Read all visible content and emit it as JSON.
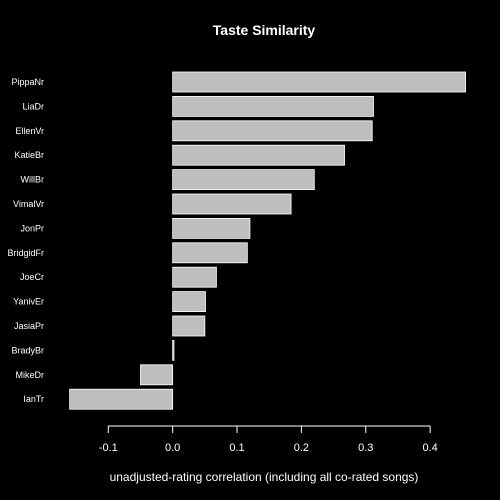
{
  "chart_data": {
    "type": "bar",
    "orientation": "horizontal",
    "title": "Taste Similarity",
    "xlabel": "unadjusted-rating correlation (including all co-rated songs)",
    "ylabel": "",
    "categories": [
      "PippaNr",
      "LiaDr",
      "EllenVr",
      "KatieBr",
      "WillBr",
      "VimalVr",
      "JonPr",
      "BridgidFr",
      "JoeCr",
      "YanivEr",
      "JasiaPr",
      "BradyBr",
      "MikeDr",
      "IanTr"
    ],
    "values": [
      0.455,
      0.312,
      0.31,
      0.267,
      0.22,
      0.184,
      0.12,
      0.116,
      0.068,
      0.051,
      0.05,
      0.002,
      -0.05,
      -0.16
    ],
    "xlim": [
      -0.175,
      0.465
    ],
    "xticks": [
      -0.1,
      0.0,
      0.1,
      0.2,
      0.3,
      0.4
    ],
    "xtick_labels": [
      "-0.1",
      "0.0",
      "0.1",
      "0.2",
      "0.3",
      "0.4"
    ],
    "grid": false,
    "colors": {
      "background": "#000000",
      "bar": "#bebebe",
      "bar_border": "#ffffff",
      "text": "#ffffff",
      "axis": "#ffffff"
    }
  }
}
